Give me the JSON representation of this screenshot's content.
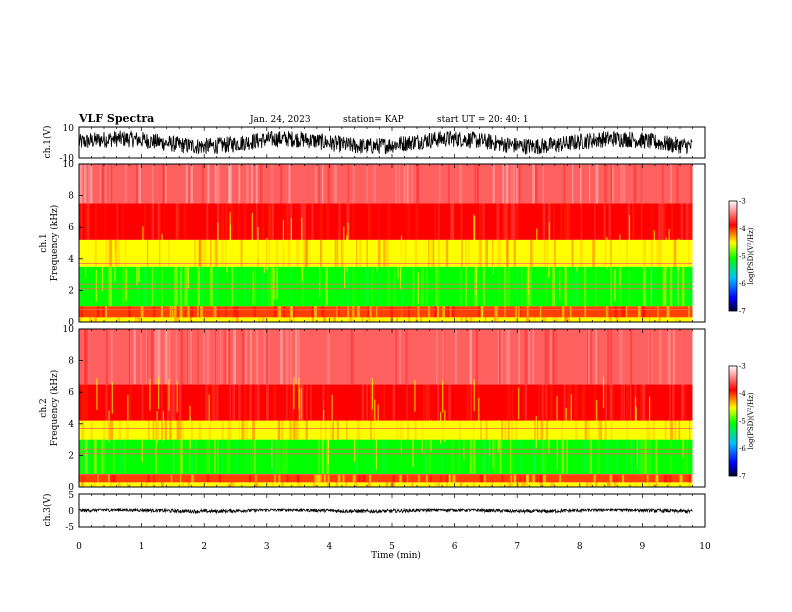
{
  "header": {
    "title": "VLF Spectra",
    "date": "Jan. 24, 2023",
    "station": "station= KAP",
    "start_ut": "start  UT =  20: 40: 1"
  },
  "chart_data": [
    {
      "type": "line",
      "id": "ch1-waveform",
      "ylabel": "ch.1(V)",
      "ylim": [
        -10,
        10
      ],
      "yticks": [
        "10",
        "-10"
      ],
      "xlim": [
        0,
        10
      ],
      "data_extent_min": 9.8,
      "envelope": [
        -9,
        9
      ],
      "color": "#000000"
    },
    {
      "type": "heatmap",
      "id": "ch1-spectrogram",
      "ylabel_line1": "ch.1",
      "ylabel_line2": "Frequency  (kHz)",
      "ylim": [
        0,
        10
      ],
      "yticks": [
        "0",
        "2",
        "4",
        "6",
        "8",
        "10"
      ],
      "xlim": [
        0,
        10
      ],
      "data_extent_min": 9.8,
      "colorbar": {
        "label": "log(PSD)(V²/Hz)",
        "range": [
          -7,
          -3
        ],
        "ticks": [
          "-3",
          "-4",
          "-5",
          "-6",
          "-7"
        ],
        "colors": [
          "#000033",
          "#0000ff",
          "#00c0ff",
          "#00ff00",
          "#ffff00",
          "#ff0000",
          "#ffffff"
        ]
      },
      "bands_khz": [
        {
          "from": 0.0,
          "to": 0.3,
          "level": "yellow"
        },
        {
          "from": 0.3,
          "to": 1.0,
          "level": "red-yellow"
        },
        {
          "from": 1.0,
          "to": 3.5,
          "level": "green"
        },
        {
          "from": 3.5,
          "to": 5.2,
          "level": "yellow"
        },
        {
          "from": 5.2,
          "to": 7.5,
          "level": "red"
        },
        {
          "from": 7.5,
          "to": 10.0,
          "level": "red-white"
        }
      ]
    },
    {
      "type": "heatmap",
      "id": "ch2-spectrogram",
      "ylabel_line1": "ch.2",
      "ylabel_line2": "Frequency  (kHz)",
      "ylim": [
        0,
        10
      ],
      "yticks": [
        "0",
        "2",
        "4",
        "6",
        "8",
        "10"
      ],
      "xlim": [
        0,
        10
      ],
      "data_extent_min": 9.8,
      "colorbar": {
        "label": "log(PSD)(V²/Hz)",
        "range": [
          -7,
          -3
        ],
        "ticks": [
          "-3",
          "-4",
          "-5",
          "-6",
          "-7"
        ],
        "colors": [
          "#000033",
          "#0000ff",
          "#00c0ff",
          "#00ff00",
          "#ffff00",
          "#ff0000",
          "#ffffff"
        ]
      },
      "bands_khz": [
        {
          "from": 0.0,
          "to": 0.3,
          "level": "yellow"
        },
        {
          "from": 0.3,
          "to": 0.8,
          "level": "red-yellow"
        },
        {
          "from": 0.8,
          "to": 3.0,
          "level": "green"
        },
        {
          "from": 3.0,
          "to": 4.2,
          "level": "yellow"
        },
        {
          "from": 4.2,
          "to": 6.5,
          "level": "red"
        },
        {
          "from": 6.5,
          "to": 10.0,
          "level": "red-white"
        }
      ]
    },
    {
      "type": "line",
      "id": "ch3-waveform",
      "ylabel": "ch.3(V)",
      "ylim": [
        -5,
        5
      ],
      "yticks": [
        "5",
        "0",
        "-5"
      ],
      "xlim": [
        0,
        10
      ],
      "data_extent_min": 9.8,
      "envelope": [
        -0.8,
        0.4
      ],
      "color": "#000000"
    }
  ],
  "xaxis": {
    "label": "Time  (min)",
    "ticks": [
      "0",
      "1",
      "2",
      "3",
      "4",
      "5",
      "6",
      "7",
      "8",
      "9",
      "10"
    ]
  }
}
